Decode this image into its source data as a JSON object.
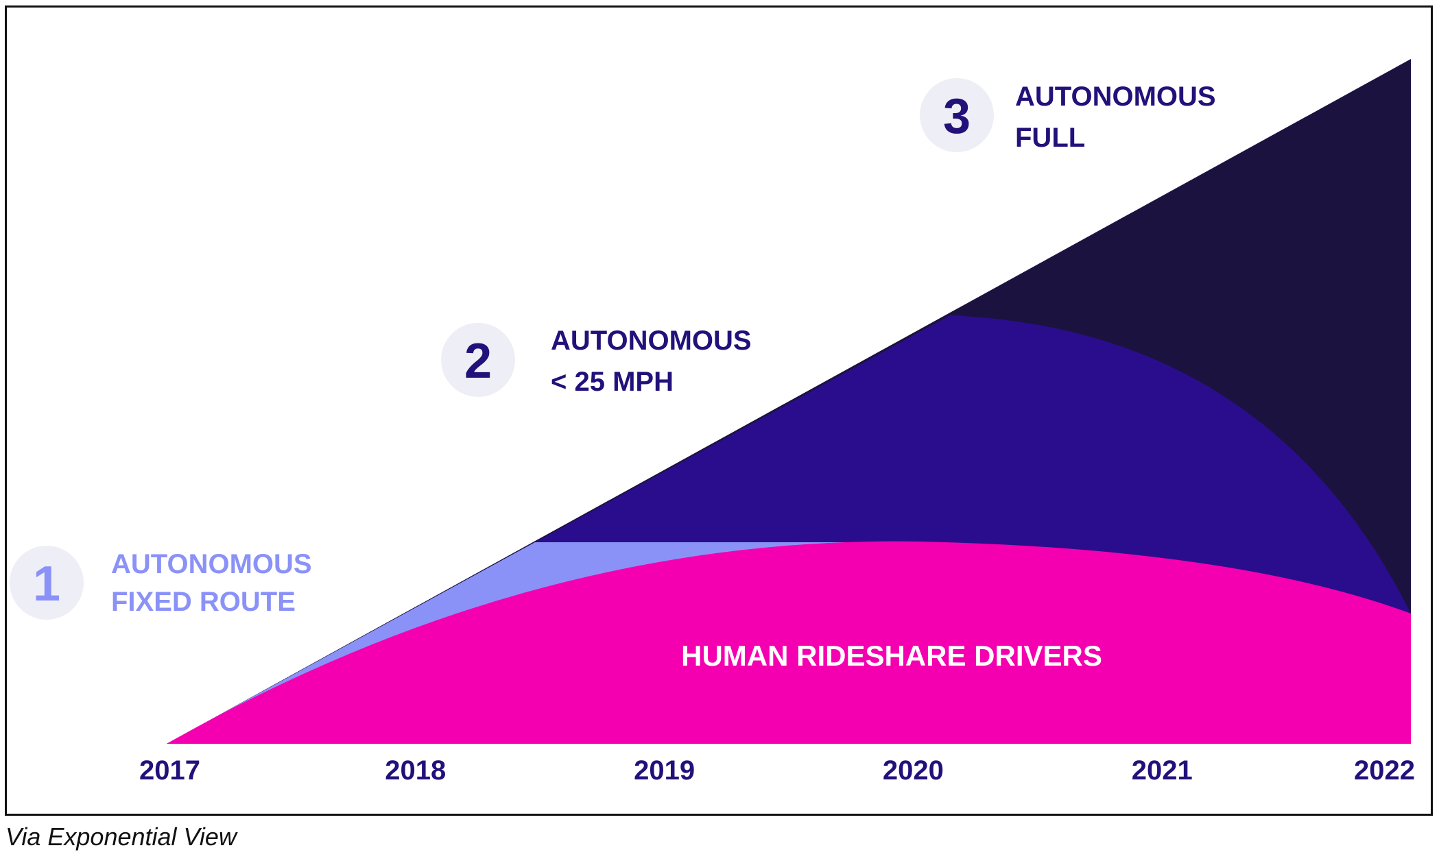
{
  "chart_data": {
    "type": "area",
    "x": [
      "2017",
      "2018",
      "2019",
      "2020",
      "2021",
      "2022"
    ],
    "series": [
      {
        "name": "HUMAN RIDESHARE DRIVERS",
        "color": "#f400b0"
      },
      {
        "name": "AUTONOMOUS FIXED ROUTE",
        "color": "#8a92f7"
      },
      {
        "name": "AUTONOMOUS < 25 MPH",
        "color": "#2a0d8c"
      },
      {
        "name": "AUTONOMOUS FULL",
        "color": "#1c1240"
      }
    ],
    "phases": [
      {
        "number": "1",
        "line1": "AUTONOMOUS",
        "line2": "FIXED ROUTE",
        "color": "#8a92f7",
        "circle_color": "#eeeef6"
      },
      {
        "number": "2",
        "line1": "AUTONOMOUS",
        "line2": "< 25 MPH",
        "color": "#22117a",
        "circle_color": "#eeeef6"
      },
      {
        "number": "3",
        "line1": "AUTONOMOUS",
        "line2": "FULL",
        "color": "#22117a",
        "circle_color": "#eeeef6"
      }
    ],
    "inner_label": "HUMAN RIDESHARE DRIVERS",
    "tick_color": "#22117a",
    "grid": false,
    "legend": "none"
  },
  "caption": "Via Exponential View"
}
